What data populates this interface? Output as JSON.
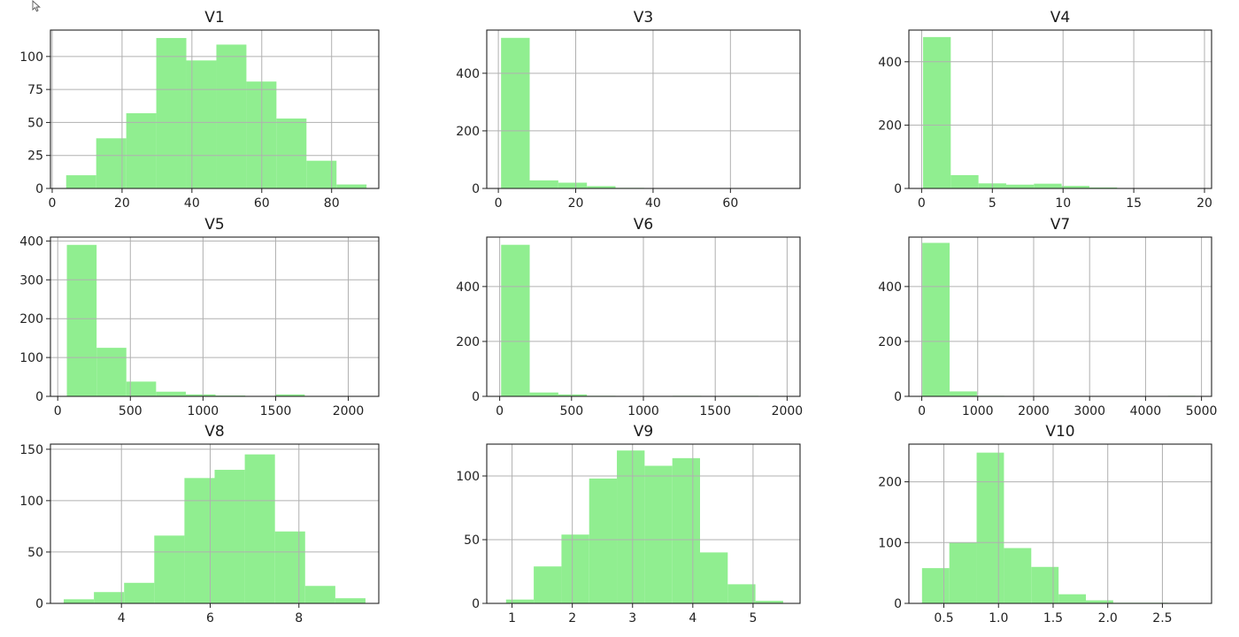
{
  "bar_color": "#90ee90",
  "grid_color": "#b0b0b0",
  "chart_data": [
    {
      "type": "bar",
      "title": "V1",
      "xlim": [
        -0.5,
        93.5
      ],
      "ylim": [
        0,
        120
      ],
      "xticks": [
        0,
        20,
        40,
        60,
        80
      ],
      "xtick_labels": [
        "0",
        "20",
        "40",
        "60",
        "80"
      ],
      "yticks": [
        0,
        25,
        50,
        75,
        100
      ],
      "ytick_labels": [
        "0",
        "25",
        "50",
        "75",
        "100"
      ],
      "bin_edges": [
        4,
        12.6,
        21.2,
        29.8,
        38.4,
        47,
        55.6,
        64.2,
        72.8,
        81.4,
        90
      ],
      "values": [
        10,
        38,
        57,
        114,
        97,
        109,
        81,
        53,
        21,
        3
      ]
    },
    {
      "type": "bar",
      "title": "V3",
      "xlim": [
        -3,
        78
      ],
      "ylim": [
        0,
        550
      ],
      "xticks": [
        0,
        20,
        40,
        60
      ],
      "xtick_labels": [
        "0",
        "20",
        "40",
        "60"
      ],
      "yticks": [
        0,
        200,
        400
      ],
      "ytick_labels": [
        "0",
        "200",
        "400"
      ],
      "bin_edges": [
        0.7,
        8.1,
        15.5,
        22.9,
        30.3,
        37.7,
        45.1,
        52.5,
        59.9,
        67.3,
        75
      ],
      "values": [
        523,
        28,
        20,
        8,
        2,
        1,
        1,
        0,
        0,
        1
      ]
    },
    {
      "type": "bar",
      "title": "V4",
      "xlim": [
        -0.9,
        20.5
      ],
      "ylim": [
        0,
        500
      ],
      "xticks": [
        0,
        5,
        10,
        15,
        20
      ],
      "xtick_labels": [
        "0",
        "5",
        "10",
        "15",
        "20"
      ],
      "yticks": [
        0,
        200,
        400
      ],
      "ytick_labels": [
        "0",
        "200",
        "400"
      ],
      "bin_edges": [
        0.1,
        2.06,
        4.02,
        5.98,
        7.94,
        9.9,
        11.86,
        13.82,
        15.78,
        17.74,
        19.7
      ],
      "values": [
        478,
        42,
        16,
        12,
        15,
        8,
        3,
        1,
        1,
        0
      ]
    },
    {
      "type": "bar",
      "title": "V5",
      "xlim": [
        -50,
        2210
      ],
      "ylim": [
        0,
        410
      ],
      "xticks": [
        0,
        500,
        1000,
        1500,
        2000
      ],
      "xtick_labels": [
        "0",
        "500",
        "1000",
        "1500",
        "2000"
      ],
      "yticks": [
        0,
        100,
        200,
        300,
        400
      ],
      "ytick_labels": [
        "0",
        "100",
        "200",
        "300",
        "400"
      ],
      "bin_edges": [
        63,
        267.7,
        472.4,
        677.1,
        881.8,
        1086.5,
        1291.2,
        1495.9,
        1700.6,
        1905.3,
        2110
      ],
      "values": [
        390,
        125,
        38,
        12,
        5,
        2,
        1,
        5,
        1,
        1
      ]
    },
    {
      "type": "bar",
      "title": "V6",
      "xlim": [
        -90,
        2090
      ],
      "ylim": [
        0,
        580
      ],
      "xticks": [
        0,
        500,
        1000,
        1500,
        2000
      ],
      "xtick_labels": [
        "0",
        "500",
        "1000",
        "1500",
        "2000"
      ],
      "yticks": [
        0,
        200,
        400
      ],
      "ytick_labels": [
        "0",
        "200",
        "400"
      ],
      "bin_edges": [
        10,
        209,
        408,
        607,
        806,
        1005,
        1204,
        1403,
        1602,
        1801,
        2000
      ],
      "values": [
        552,
        14,
        7,
        2,
        1,
        0,
        2,
        0,
        2,
        1
      ]
    },
    {
      "type": "bar",
      "title": "V7",
      "xlim": [
        -230,
        5180
      ],
      "ylim": [
        0,
        580
      ],
      "xticks": [
        0,
        1000,
        2000,
        3000,
        4000,
        5000
      ],
      "xtick_labels": [
        "0",
        "1000",
        "2000",
        "3000",
        "4000",
        "5000"
      ],
      "yticks": [
        0,
        200,
        400
      ],
      "ytick_labels": [
        "0",
        "200",
        "400"
      ],
      "bin_edges": [
        10,
        498,
        986,
        1474,
        1962,
        2450,
        2938,
        3426,
        3914,
        4402,
        4890
      ],
      "values": [
        559,
        18,
        2,
        1,
        0,
        1,
        0,
        0,
        0,
        2
      ]
    },
    {
      "type": "bar",
      "title": "V8",
      "xlim": [
        2.4,
        9.8
      ],
      "ylim": [
        0,
        155
      ],
      "xticks": [
        4,
        6,
        8
      ],
      "xtick_labels": [
        "4",
        "6",
        "8"
      ],
      "yticks": [
        0,
        50,
        100,
        150
      ],
      "ytick_labels": [
        "0",
        "50",
        "100",
        "150"
      ],
      "bin_edges": [
        2.7,
        3.38,
        4.06,
        4.74,
        5.42,
        6.1,
        6.78,
        7.46,
        8.14,
        8.82,
        9.5
      ],
      "values": [
        4,
        11,
        20,
        66,
        122,
        130,
        145,
        70,
        17,
        5
      ]
    },
    {
      "type": "bar",
      "title": "V9",
      "xlim": [
        0.58,
        5.78
      ],
      "ylim": [
        0,
        125
      ],
      "xticks": [
        1,
        2,
        3,
        4,
        5
      ],
      "xtick_labels": [
        "1",
        "2",
        "3",
        "4",
        "5"
      ],
      "yticks": [
        0,
        50,
        100
      ],
      "ytick_labels": [
        "0",
        "50",
        "100"
      ],
      "bin_edges": [
        0.9,
        1.36,
        1.82,
        2.28,
        2.74,
        3.2,
        3.66,
        4.12,
        4.58,
        5.04,
        5.5
      ],
      "values": [
        3,
        29,
        54,
        98,
        120,
        108,
        114,
        40,
        15,
        2
      ]
    },
    {
      "type": "bar",
      "title": "V10",
      "xlim": [
        0.18,
        2.95
      ],
      "ylim": [
        0,
        262
      ],
      "xticks": [
        0.5,
        1.0,
        1.5,
        2.0,
        2.5
      ],
      "xtick_labels": [
        "0.5",
        "1.0",
        "1.5",
        "2.0",
        "2.5"
      ],
      "yticks": [
        0,
        100,
        200
      ],
      "ytick_labels": [
        "0",
        "100",
        "200"
      ],
      "bin_edges": [
        0.3,
        0.55,
        0.8,
        1.05,
        1.3,
        1.55,
        1.8,
        2.05,
        2.3,
        2.55,
        2.8
      ],
      "values": [
        58,
        100,
        248,
        91,
        60,
        15,
        5,
        1,
        1,
        0
      ]
    }
  ]
}
